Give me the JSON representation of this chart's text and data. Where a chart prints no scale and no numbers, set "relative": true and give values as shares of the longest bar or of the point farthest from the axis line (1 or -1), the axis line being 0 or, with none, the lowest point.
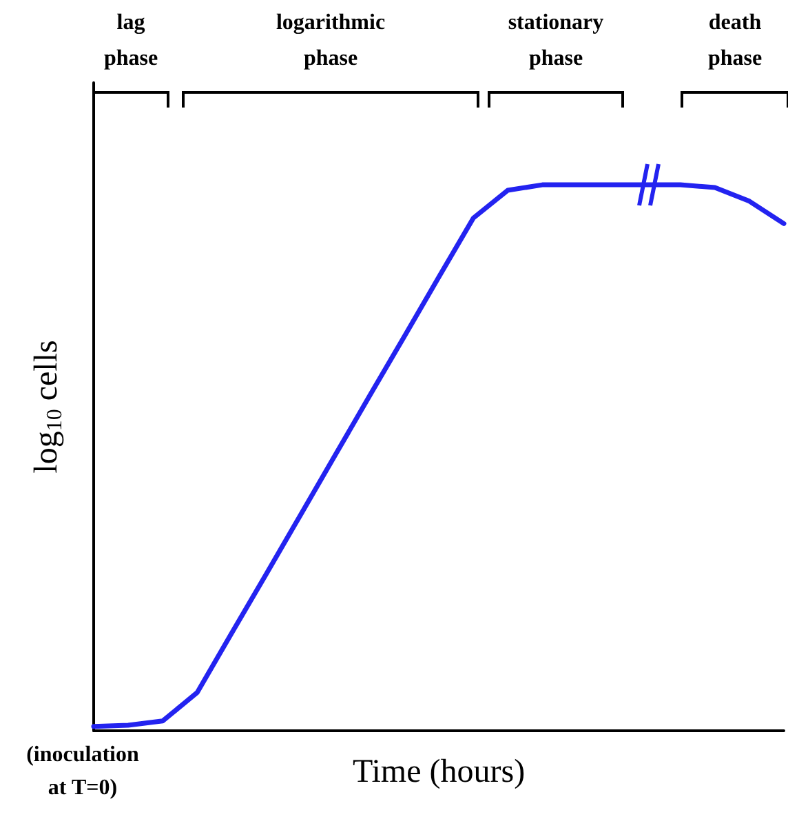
{
  "chart_data": {
    "type": "line",
    "xlabel": "Time (hours)",
    "ylabel": "log$_{10}$ cells",
    "relative": true,
    "grid": false,
    "marker": "none",
    "line_style": "solid",
    "categories": [
      null,
      null,
      null,
      null,
      null,
      null,
      null,
      null,
      null,
      null,
      null,
      null,
      null,
      null,
      null,
      null,
      null,
      null,
      null,
      null,
      null
    ],
    "series": [
      {
        "color": "#2323f0",
        "values": [
          0.008,
          0.01,
          0.018,
          0.07,
          0.179,
          0.287,
          0.396,
          0.505,
          0.614,
          0.722,
          0.831,
          0.939,
          0.99,
          1,
          1,
          1,
          1,
          1,
          0.995,
          0.97,
          0.929
        ]
      }
    ],
    "annotations": [
      "lag phase",
      "logarithmic phase",
      "stationary phase",
      "death phase",
      "(inoculation at T=0)"
    ]
  }
}
